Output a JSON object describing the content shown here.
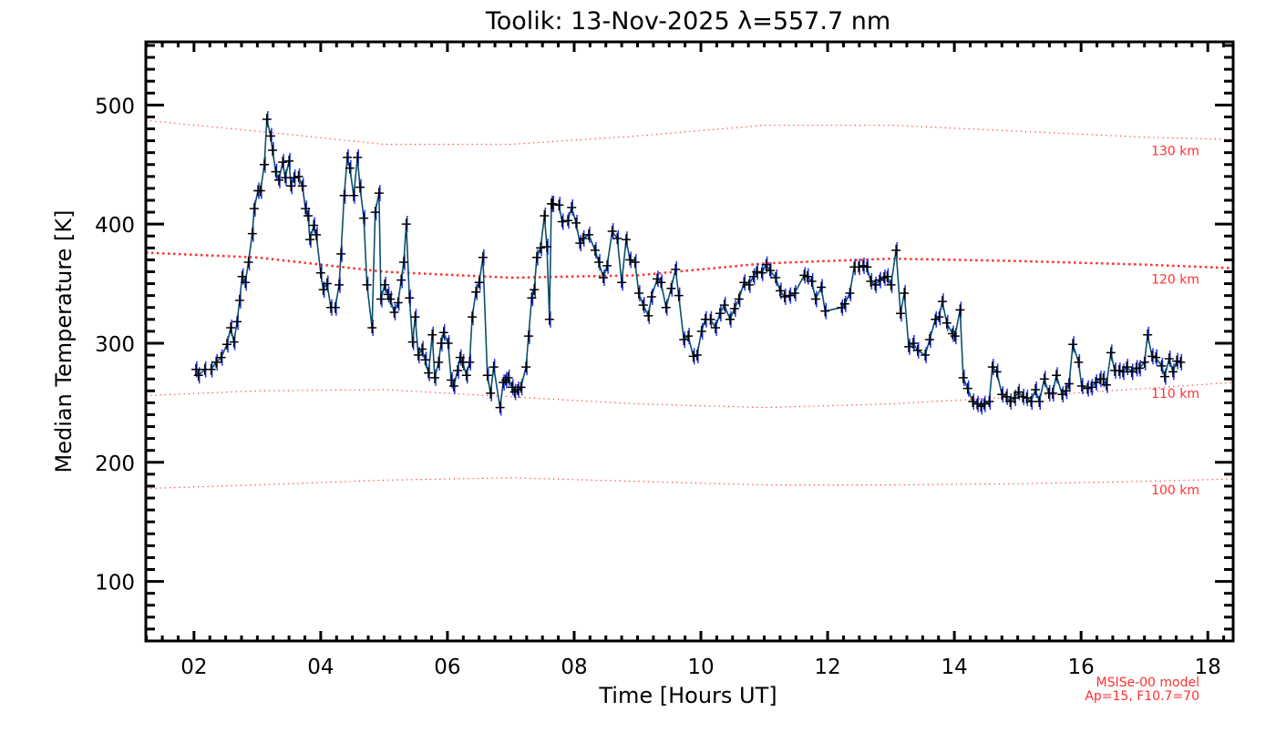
{
  "chart_data": {
    "type": "line",
    "title": "Toolik: 13-Nov-2025 λ=557.7 nm",
    "xlabel": "Time [Hours UT]",
    "ylabel": "Median Temperature [K]",
    "xlim": [
      1.24,
      18.4
    ],
    "ylim": [
      50,
      553
    ],
    "xticks": [
      2,
      4,
      6,
      8,
      10,
      12,
      14,
      16,
      18
    ],
    "xtick_labels": [
      "02",
      "04",
      "06",
      "08",
      "10",
      "12",
      "14",
      "16",
      "18"
    ],
    "yticks": [
      100,
      200,
      300,
      400,
      500
    ],
    "ytick_labels": [
      "100",
      "200",
      "300",
      "400",
      "500"
    ],
    "grid": false,
    "colors": {
      "line": "#0b4f6c",
      "error": "#1f2fff",
      "marker": "#000000",
      "model": "#ff3030"
    },
    "series": [
      {
        "name": "Median Temperature",
        "x": [
          2.03,
          2.07,
          2.17,
          2.27,
          2.35,
          2.43,
          2.52,
          2.58,
          2.63,
          2.68,
          2.72,
          2.76,
          2.81,
          2.86,
          2.92,
          2.95,
          3.01,
          3.05,
          3.11,
          3.15,
          3.21,
          3.24,
          3.29,
          3.34,
          3.4,
          3.44,
          3.5,
          3.53,
          3.58,
          3.65,
          3.71,
          3.76,
          3.8,
          3.83,
          3.89,
          3.93,
          4.0,
          4.04,
          4.1,
          4.16,
          4.23,
          4.29,
          4.32,
          4.37,
          4.42,
          4.46,
          4.52,
          4.58,
          4.62,
          4.68,
          4.73,
          4.81,
          4.86,
          4.92,
          4.95,
          5.01,
          5.06,
          5.1,
          5.16,
          5.22,
          5.27,
          5.31,
          5.35,
          5.4,
          5.45,
          5.49,
          5.54,
          5.6,
          5.65,
          5.7,
          5.76,
          5.8,
          5.86,
          5.9,
          5.94,
          6.01,
          6.06,
          6.1,
          6.16,
          6.2,
          6.24,
          6.3,
          6.35,
          6.39,
          6.45,
          6.5,
          6.56,
          6.63,
          6.68,
          6.73,
          6.83,
          6.88,
          6.92,
          6.96,
          7.02,
          7.06,
          7.11,
          7.16,
          7.24,
          7.28,
          7.33,
          7.37,
          7.41,
          7.47,
          7.53,
          7.57,
          7.61,
          7.64,
          7.66,
          7.76,
          7.81,
          7.9,
          7.96,
          8.03,
          8.09,
          8.14,
          8.23,
          8.33,
          8.39,
          8.46,
          8.52,
          8.6,
          8.68,
          8.75,
          8.82,
          8.88,
          8.96,
          9.02,
          9.09,
          9.17,
          9.22,
          9.31,
          9.37,
          9.45,
          9.53,
          9.6,
          9.65,
          9.73,
          9.8,
          9.88,
          9.94,
          10.01,
          10.07,
          10.15,
          10.23,
          10.3,
          10.37,
          10.46,
          10.53,
          10.6,
          10.68,
          10.76,
          10.83,
          10.88,
          10.96,
          11.03,
          11.09,
          11.18,
          11.25,
          11.32,
          11.4,
          11.48,
          11.63,
          11.68,
          11.75,
          11.81,
          11.9,
          11.96,
          12.22,
          12.27,
          12.35,
          12.42,
          12.49,
          12.56,
          12.62,
          12.68,
          12.75,
          12.82,
          12.89,
          12.94,
          13.0,
          13.08,
          13.15,
          13.21,
          13.28,
          13.35,
          13.42,
          13.54,
          13.61,
          13.7,
          13.76,
          13.81,
          13.88,
          13.97,
          14.01,
          14.09,
          14.14,
          14.21,
          14.29,
          14.36,
          14.42,
          14.47,
          14.55,
          14.6,
          14.67,
          14.75,
          14.82,
          14.88,
          14.95,
          15.01,
          15.08,
          15.14,
          15.21,
          15.28,
          15.34,
          15.42,
          15.49,
          15.55,
          15.61,
          15.7,
          15.76,
          15.81,
          15.87,
          15.96,
          16.01,
          16.1,
          16.16,
          16.23,
          16.3,
          16.35,
          16.4,
          16.47,
          16.53,
          16.6,
          16.66,
          16.72,
          16.8,
          16.87,
          16.92,
          17.0,
          17.05,
          17.12,
          17.18,
          17.27,
          17.32,
          17.39,
          17.45,
          17.51,
          17.57
        ],
        "y": [
          278,
          273,
          278,
          278,
          284,
          288,
          299,
          313,
          301,
          318,
          336,
          356,
          351,
          368,
          392,
          413,
          428,
          428,
          450,
          488,
          474,
          462,
          444,
          437,
          452,
          439,
          453,
          432,
          439,
          440,
          432,
          413,
          407,
          387,
          399,
          391,
          359,
          345,
          350,
          330,
          330,
          349,
          375,
          424,
          456,
          447,
          424,
          456,
          431,
          405,
          349,
          313,
          410,
          426,
          337,
          349,
          341,
          337,
          326,
          334,
          353,
          368,
          400,
          338,
          301,
          322,
          290,
          295,
          286,
          275,
          307,
          271,
          284,
          300,
          309,
          300,
          269,
          264,
          277,
          288,
          284,
          273,
          284,
          322,
          343,
          351,
          372,
          273,
          258,
          280,
          246,
          267,
          269,
          271,
          263,
          259,
          261,
          263,
          280,
          306,
          338,
          345,
          372,
          380,
          407,
          381,
          320,
          417,
          417,
          416,
          402,
          403,
          414,
          401,
          384,
          388,
          391,
          378,
          368,
          355,
          365,
          394,
          388,
          351,
          387,
          370,
          368,
          342,
          332,
          323,
          339,
          354,
          351,
          330,
          346,
          362,
          340,
          303,
          306,
          289,
          290,
          310,
          320,
          320,
          313,
          325,
          332,
          320,
          329,
          337,
          351,
          349,
          356,
          360,
          359,
          366,
          361,
          355,
          344,
          339,
          340,
          342,
          357,
          356,
          352,
          337,
          347,
          327,
          330,
          333,
          342,
          364,
          364,
          365,
          364,
          352,
          349,
          353,
          355,
          356,
          349,
          378,
          325,
          342,
          297,
          300,
          294,
          290,
          303,
          320,
          322,
          335,
          317,
          308,
          306,
          328,
          271,
          262,
          251,
          249,
          247,
          249,
          251,
          280,
          276,
          257,
          255,
          251,
          254,
          259,
          255,
          254,
          251,
          261,
          251,
          270,
          258,
          258,
          273,
          257,
          260,
          266,
          299,
          284,
          264,
          262,
          263,
          267,
          270,
          270,
          265,
          292,
          277,
          277,
          276,
          280,
          276,
          279,
          279,
          284,
          307,
          289,
          288,
          281,
          272,
          287,
          276,
          285,
          284
        ]
      }
    ],
    "model": {
      "name": "MSISe-00 model",
      "params": "Ap=15, F10.7=70",
      "hours": [
        1.24,
        3,
        5,
        7,
        9,
        11,
        13,
        15,
        17,
        18.4
      ],
      "curves": [
        {
          "label": "130 km",
          "values": [
            487,
            478,
            467,
            467,
            474,
            483,
            483,
            478,
            473,
            471
          ]
        },
        {
          "label": "120 km",
          "values": [
            376,
            372,
            360,
            355,
            357,
            367,
            371,
            369,
            366,
            363
          ]
        },
        {
          "label": "110 km",
          "values": [
            256,
            260,
            261,
            255,
            249,
            246,
            249,
            255,
            262,
            267
          ]
        },
        {
          "label": "100 km",
          "values": [
            178,
            181,
            185,
            187,
            184,
            181,
            181,
            182,
            184,
            186
          ]
        }
      ]
    }
  }
}
